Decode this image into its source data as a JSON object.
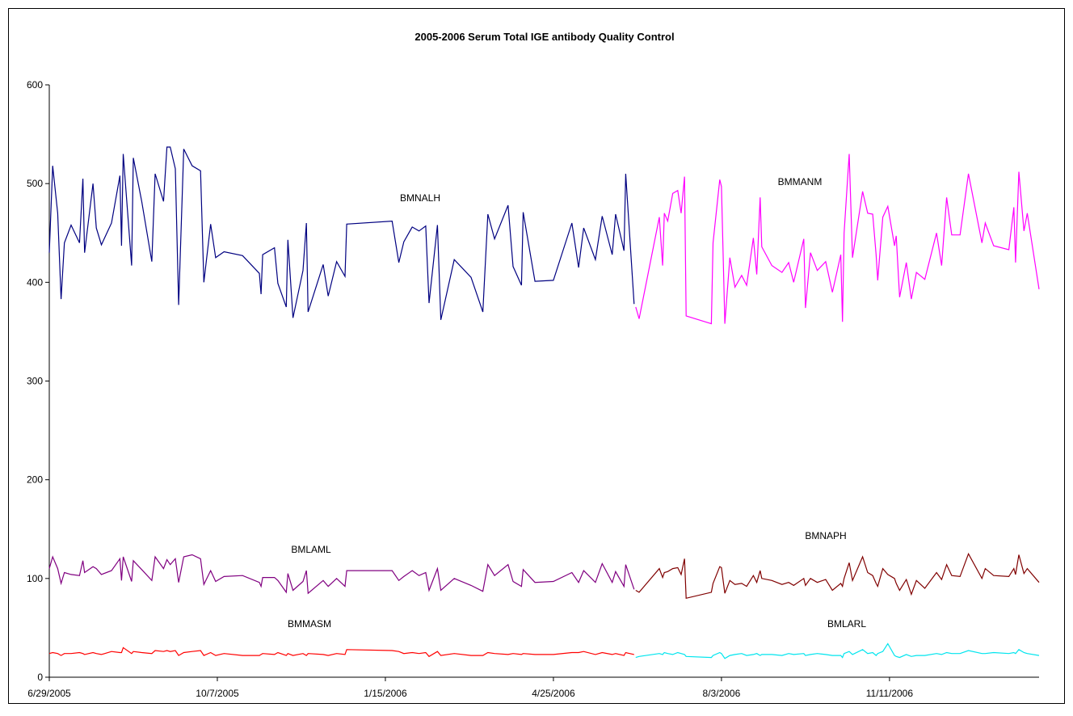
{
  "chart_data": {
    "type": "line",
    "title": "2005-2006 Serum Total IGE antibody Quality Control",
    "xlim": [
      "6/29/2005",
      "2/8/2007"
    ],
    "xticks": [
      "6/29/2005",
      "10/7/2005",
      "1/15/2006",
      "4/25/2006",
      "8/3/2006",
      "11/11/2006"
    ],
    "ylim": [
      0,
      600
    ],
    "yticks": [
      0,
      100,
      200,
      300,
      400,
      500,
      600
    ],
    "grid": false,
    "series": [
      {
        "name": "BMNALH",
        "color": "#000080",
        "x": [
          "6/29/2005",
          "7/1/2005",
          "7/4/2005",
          "7/6/2005",
          "7/8/2005",
          "7/12/2005",
          "7/17/2005",
          "7/19/2005",
          "7/20/2005",
          "7/25/2005",
          "7/27/2005",
          "7/30/2005",
          "8/5/2005",
          "8/10/2005",
          "8/11/2005",
          "8/12/2005",
          "8/17/2005",
          "8/18/2005",
          "8/23/2005",
          "8/29/2005",
          "8/31/2005",
          "9/5/2005",
          "9/7/2005",
          "9/9/2005",
          "9/12/2005",
          "9/14/2005",
          "9/17/2005",
          "9/22/2005",
          "9/27/2005",
          "9/29/2005",
          "10/3/2005",
          "10/6/2005",
          "10/11/2005",
          "10/22/2005",
          "11/1/2005",
          "11/2/2005",
          "11/3/2005",
          "11/10/2005",
          "11/12/2005",
          "11/17/2005",
          "11/18/2005",
          "11/21/2005",
          "11/27/2005",
          "11/29/2005",
          "11/30/2005",
          "12/9/2005",
          "12/12/2005",
          "12/17/2005",
          "12/22/2005",
          "12/23/2005",
          "1/19/2006",
          "1/23/2006",
          "1/26/2006",
          "1/31/2006",
          "2/4/2006",
          "2/8/2006",
          "2/10/2006",
          "2/15/2006",
          "2/17/2006",
          "2/25/2006",
          "3/7/2006",
          "3/14/2006",
          "3/17/2006",
          "3/21/2006",
          "3/29/2006",
          "4/1/2006",
          "4/6/2006",
          "4/7/2006",
          "4/14/2006",
          "4/25/2006",
          "5/6/2006",
          "5/10/2006",
          "5/13/2006",
          "5/20/2006",
          "5/24/2006",
          "5/30/2006",
          "6/1/2006",
          "6/6/2006",
          "6/7/2006",
          "6/12/2006"
        ],
        "values": [
          430,
          518,
          470,
          383,
          440,
          458,
          440,
          505,
          430,
          500,
          455,
          438,
          460,
          508,
          437,
          530,
          417,
          526,
          482,
          421,
          510,
          482,
          537,
          537,
          515,
          377,
          535,
          518,
          513,
          400,
          459,
          425,
          431,
          427,
          409,
          388,
          428,
          435,
          399,
          375,
          443,
          364,
          412,
          460,
          370,
          418,
          386,
          421,
          406,
          459,
          462,
          420,
          441,
          456,
          452,
          457,
          379,
          458,
          362,
          423,
          405,
          370,
          469,
          444,
          478,
          416,
          397,
          471,
          401,
          402,
          460,
          415,
          455,
          423,
          467,
          428,
          469,
          432,
          510,
          378
        ]
      },
      {
        "name": "BMMANM",
        "color": "#800080",
        "x": [
          "6/29/2005",
          "7/1/2005",
          "7/4/2005",
          "7/6/2005",
          "7/8/2005",
          "7/12/2005",
          "7/17/2005",
          "7/19/2005",
          "7/20/2005",
          "7/25/2005",
          "7/27/2005",
          "7/30/2005",
          "8/5/2005",
          "8/10/2005",
          "8/11/2005",
          "8/12/2005",
          "8/17/2005",
          "8/18/2005",
          "8/23/2005",
          "8/29/2005",
          "8/31/2005",
          "9/5/2005",
          "9/7/2005",
          "9/9/2005",
          "9/12/2005",
          "9/14/2005",
          "9/17/2005",
          "9/22/2005",
          "9/27/2005",
          "9/29/2005",
          "10/3/2005",
          "10/6/2005",
          "10/11/2005",
          "10/22/2005",
          "11/1/2005",
          "11/2/2005",
          "11/3/2005",
          "11/10/2005",
          "11/12/2005",
          "11/17/2005",
          "11/18/2005",
          "11/21/2005",
          "11/27/2005",
          "11/29/2005",
          "11/30/2005",
          "12/9/2005",
          "12/12/2005",
          "12/17/2005",
          "12/22/2005",
          "12/23/2005",
          "1/19/2006",
          "1/23/2006",
          "1/26/2006",
          "1/31/2006",
          "2/4/2006",
          "2/8/2006",
          "2/10/2006",
          "2/15/2006",
          "2/17/2006",
          "2/25/2006",
          "3/7/2006",
          "3/14/2006",
          "3/17/2006",
          "3/21/2006",
          "3/29/2006",
          "4/1/2006",
          "4/6/2006",
          "4/7/2006",
          "4/14/2006",
          "4/25/2006",
          "5/6/2006",
          "5/10/2006",
          "5/13/2006",
          "5/20/2006",
          "5/24/2006",
          "5/30/2006",
          "6/1/2006",
          "6/6/2006",
          "6/7/2006",
          "6/12/2006"
        ],
        "values": [
          110,
          122,
          110,
          95,
          106,
          104,
          103,
          118,
          106,
          112,
          110,
          104,
          108,
          120,
          98,
          122,
          97,
          118,
          109,
          98,
          122,
          110,
          119,
          114,
          120,
          96,
          122,
          124,
          120,
          94,
          108,
          97,
          102,
          103,
          96,
          92,
          101,
          101,
          98,
          86,
          105,
          88,
          97,
          108,
          85,
          98,
          92,
          100,
          92,
          108,
          108,
          98,
          102,
          108,
          103,
          106,
          88,
          110,
          88,
          100,
          93,
          87,
          114,
          103,
          114,
          97,
          92,
          109,
          96,
          97,
          106,
          96,
          108,
          96,
          115,
          96,
          107,
          92,
          114,
          89
        ]
      },
      {
        "name": "BMLAML",
        "color": "#ff0000",
        "x": [
          "6/29/2005",
          "7/1/2005",
          "7/4/2005",
          "7/6/2005",
          "7/8/2005",
          "7/12/2005",
          "7/17/2005",
          "7/19/2005",
          "7/20/2005",
          "7/25/2005",
          "7/27/2005",
          "7/30/2005",
          "8/5/2005",
          "8/10/2005",
          "8/11/2005",
          "8/12/2005",
          "8/17/2005",
          "8/18/2005",
          "8/23/2005",
          "8/29/2005",
          "8/31/2005",
          "9/5/2005",
          "9/7/2005",
          "9/9/2005",
          "9/12/2005",
          "9/14/2005",
          "9/17/2005",
          "9/22/2005",
          "9/27/2005",
          "9/29/2005",
          "10/3/2005",
          "10/6/2005",
          "10/11/2005",
          "10/22/2005",
          "11/1/2005",
          "11/2/2005",
          "11/3/2005",
          "11/10/2005",
          "11/12/2005",
          "11/17/2005",
          "11/18/2005",
          "11/21/2005",
          "11/27/2005",
          "11/29/2005",
          "11/30/2005",
          "12/9/2005",
          "12/12/2005",
          "12/17/2005",
          "12/22/2005",
          "12/23/2005",
          "1/19/2006",
          "1/23/2006",
          "1/26/2006",
          "1/31/2006",
          "2/4/2006",
          "2/8/2006",
          "2/10/2006",
          "2/15/2006",
          "2/17/2006",
          "2/25/2006",
          "3/7/2006",
          "3/14/2006",
          "3/17/2006",
          "3/21/2006",
          "3/29/2006",
          "4/1/2006",
          "4/6/2006",
          "4/7/2006",
          "4/14/2006",
          "4/25/2006",
          "5/6/2006",
          "5/10/2006",
          "5/13/2006",
          "5/20/2006",
          "5/24/2006",
          "5/30/2006",
          "6/1/2006",
          "6/6/2006",
          "6/7/2006",
          "6/12/2006"
        ],
        "values": [
          24,
          25,
          24,
          22,
          24,
          24,
          25,
          24,
          23,
          25,
          24,
          23,
          26,
          25,
          25,
          30,
          24,
          26,
          25,
          24,
          27,
          26,
          27,
          26,
          27,
          22,
          25,
          26,
          27,
          22,
          25,
          22,
          24,
          22,
          22,
          23,
          24,
          23,
          25,
          22,
          24,
          22,
          24,
          22,
          24,
          23,
          22,
          24,
          23,
          28,
          27,
          26,
          24,
          25,
          24,
          25,
          21,
          26,
          22,
          24,
          22,
          22,
          25,
          24,
          23,
          24,
          23,
          24,
          23,
          23,
          25,
          25,
          26,
          23,
          25,
          23,
          24,
          22,
          25,
          23
        ]
      },
      {
        "name": "BMNAPH",
        "color": "#ff00ff",
        "x": [
          "6/13/2006",
          "6/15/2006",
          "6/27/2006",
          "6/29/2006",
          "6/30/2006",
          "7/2/2006",
          "7/5/2006",
          "7/8/2006",
          "7/10/2006",
          "7/12/2006",
          "7/13/2006",
          "7/28/2006",
          "7/29/2006",
          "8/2/2006",
          "8/3/2006",
          "8/5/2006",
          "8/8/2006",
          "8/11/2006",
          "8/15/2006",
          "8/18/2006",
          "8/22/2006",
          "8/24/2006",
          "8/26/2006",
          "8/27/2006",
          "9/2/2006",
          "9/8/2006",
          "9/12/2006",
          "9/15/2006",
          "9/21/2006",
          "9/22/2006",
          "9/25/2006",
          "9/29/2006",
          "10/4/2006",
          "10/8/2006",
          "10/13/2006",
          "10/14/2006",
          "10/15/2006",
          "10/18/2006",
          "10/20/2006",
          "10/26/2006",
          "10/29/2006",
          "11/1/2006",
          "11/3/2006",
          "11/4/2006",
          "11/7/2006",
          "11/10/2006",
          "11/14/2006",
          "11/15/2006",
          "11/17/2006",
          "11/21/2006",
          "11/24/2006",
          "11/27/2006",
          "12/2/2006",
          "12/9/2006",
          "12/12/2006",
          "12/15/2006",
          "12/18/2006",
          "12/23/2006",
          "12/28/2006",
          "1/5/2007",
          "1/7/2007",
          "1/12/2007",
          "1/21/2007",
          "1/24/2007",
          "1/25/2007",
          "1/27/2007",
          "1/30/2007",
          "2/1/2007",
          "2/8/2007"
        ],
        "values": [
          375,
          363,
          466,
          417,
          470,
          462,
          490,
          493,
          470,
          507,
          366,
          358,
          440,
          504,
          497,
          358,
          425,
          395,
          407,
          397,
          445,
          408,
          486,
          436,
          417,
          410,
          420,
          400,
          444,
          374,
          430,
          412,
          421,
          390,
          428,
          360,
          450,
          530,
          425,
          492,
          470,
          469,
          428,
          402,
          466,
          477,
          437,
          447,
          385,
          420,
          383,
          410,
          403,
          450,
          417,
          486,
          448,
          448,
          510,
          440,
          460,
          437,
          433,
          476,
          420,
          512,
          452,
          470,
          393
        ]
      },
      {
        "name": "BMMASM",
        "color": "#800000",
        "x": [
          "6/13/2006",
          "6/15/2006",
          "6/27/2006",
          "6/29/2006",
          "6/30/2006",
          "7/2/2006",
          "7/5/2006",
          "7/8/2006",
          "7/10/2006",
          "7/12/2006",
          "7/13/2006",
          "7/28/2006",
          "7/29/2006",
          "8/2/2006",
          "8/3/2006",
          "8/5/2006",
          "8/8/2006",
          "8/11/2006",
          "8/15/2006",
          "8/18/2006",
          "8/22/2006",
          "8/24/2006",
          "8/26/2006",
          "8/27/2006",
          "9/2/2006",
          "9/8/2006",
          "9/12/2006",
          "9/15/2006",
          "9/21/2006",
          "9/22/2006",
          "9/25/2006",
          "9/29/2006",
          "10/4/2006",
          "10/8/2006",
          "10/13/2006",
          "10/14/2006",
          "10/15/2006",
          "10/18/2006",
          "10/20/2006",
          "10/26/2006",
          "10/29/2006",
          "11/1/2006",
          "11/3/2006",
          "11/4/2006",
          "11/7/2006",
          "11/10/2006",
          "11/14/2006",
          "11/15/2006",
          "11/17/2006",
          "11/21/2006",
          "11/24/2006",
          "11/27/2006",
          "12/2/2006",
          "12/9/2006",
          "12/12/2006",
          "12/15/2006",
          "12/18/2006",
          "12/23/2006",
          "12/28/2006",
          "1/5/2007",
          "1/7/2007",
          "1/12/2007",
          "1/21/2007",
          "1/24/2007",
          "1/25/2007",
          "1/27/2007",
          "1/30/2007",
          "2/1/2007",
          "2/8/2007"
        ],
        "values": [
          88,
          86,
          110,
          101,
          106,
          107,
          110,
          111,
          104,
          120,
          80,
          86,
          95,
          112,
          111,
          85,
          98,
          94,
          95,
          92,
          103,
          96,
          108,
          100,
          98,
          94,
          96,
          93,
          100,
          93,
          100,
          96,
          99,
          88,
          95,
          92,
          100,
          116,
          98,
          122,
          106,
          103,
          95,
          92,
          110,
          104,
          100,
          95,
          88,
          99,
          84,
          98,
          90,
          106,
          99,
          114,
          103,
          102,
          125,
          100,
          110,
          103,
          102,
          110,
          104,
          124,
          105,
          110,
          96
        ]
      },
      {
        "name": "BMLARL",
        "color": "#00e5ee",
        "x": [
          "6/13/2006",
          "6/15/2006",
          "6/27/2006",
          "6/29/2006",
          "6/30/2006",
          "7/2/2006",
          "7/5/2006",
          "7/8/2006",
          "7/10/2006",
          "7/12/2006",
          "7/13/2006",
          "7/28/2006",
          "7/29/2006",
          "8/2/2006",
          "8/3/2006",
          "8/5/2006",
          "8/8/2006",
          "8/11/2006",
          "8/15/2006",
          "8/18/2006",
          "8/22/2006",
          "8/24/2006",
          "8/26/2006",
          "8/27/2006",
          "9/2/2006",
          "9/8/2006",
          "9/12/2006",
          "9/15/2006",
          "9/21/2006",
          "9/22/2006",
          "9/25/2006",
          "9/29/2006",
          "10/4/2006",
          "10/8/2006",
          "10/13/2006",
          "10/14/2006",
          "10/15/2006",
          "10/18/2006",
          "10/20/2006",
          "10/26/2006",
          "10/29/2006",
          "11/1/2006",
          "11/3/2006",
          "11/4/2006",
          "11/7/2006",
          "11/10/2006",
          "11/14/2006",
          "11/15/2006",
          "11/17/2006",
          "11/21/2006",
          "11/24/2006",
          "11/27/2006",
          "12/2/2006",
          "12/9/2006",
          "12/12/2006",
          "12/15/2006",
          "12/18/2006",
          "12/23/2006",
          "12/28/2006",
          "1/5/2007",
          "1/7/2007",
          "1/12/2007",
          "1/21/2007",
          "1/24/2007",
          "1/25/2007",
          "1/27/2007",
          "1/30/2007",
          "2/1/2007",
          "2/8/2007"
        ],
        "values": [
          20,
          21,
          24,
          23,
          25,
          24,
          23,
          25,
          24,
          23,
          21,
          20,
          22,
          25,
          24,
          19,
          22,
          23,
          24,
          22,
          23,
          24,
          22,
          23,
          23,
          22,
          24,
          23,
          24,
          22,
          23,
          24,
          23,
          22,
          22,
          20,
          24,
          26,
          23,
          28,
          24,
          25,
          22,
          24,
          26,
          34,
          22,
          21,
          20,
          23,
          21,
          22,
          22,
          24,
          23,
          25,
          24,
          24,
          27,
          24,
          24,
          25,
          24,
          25,
          24,
          28,
          25,
          24,
          22
        ]
      }
    ]
  }
}
